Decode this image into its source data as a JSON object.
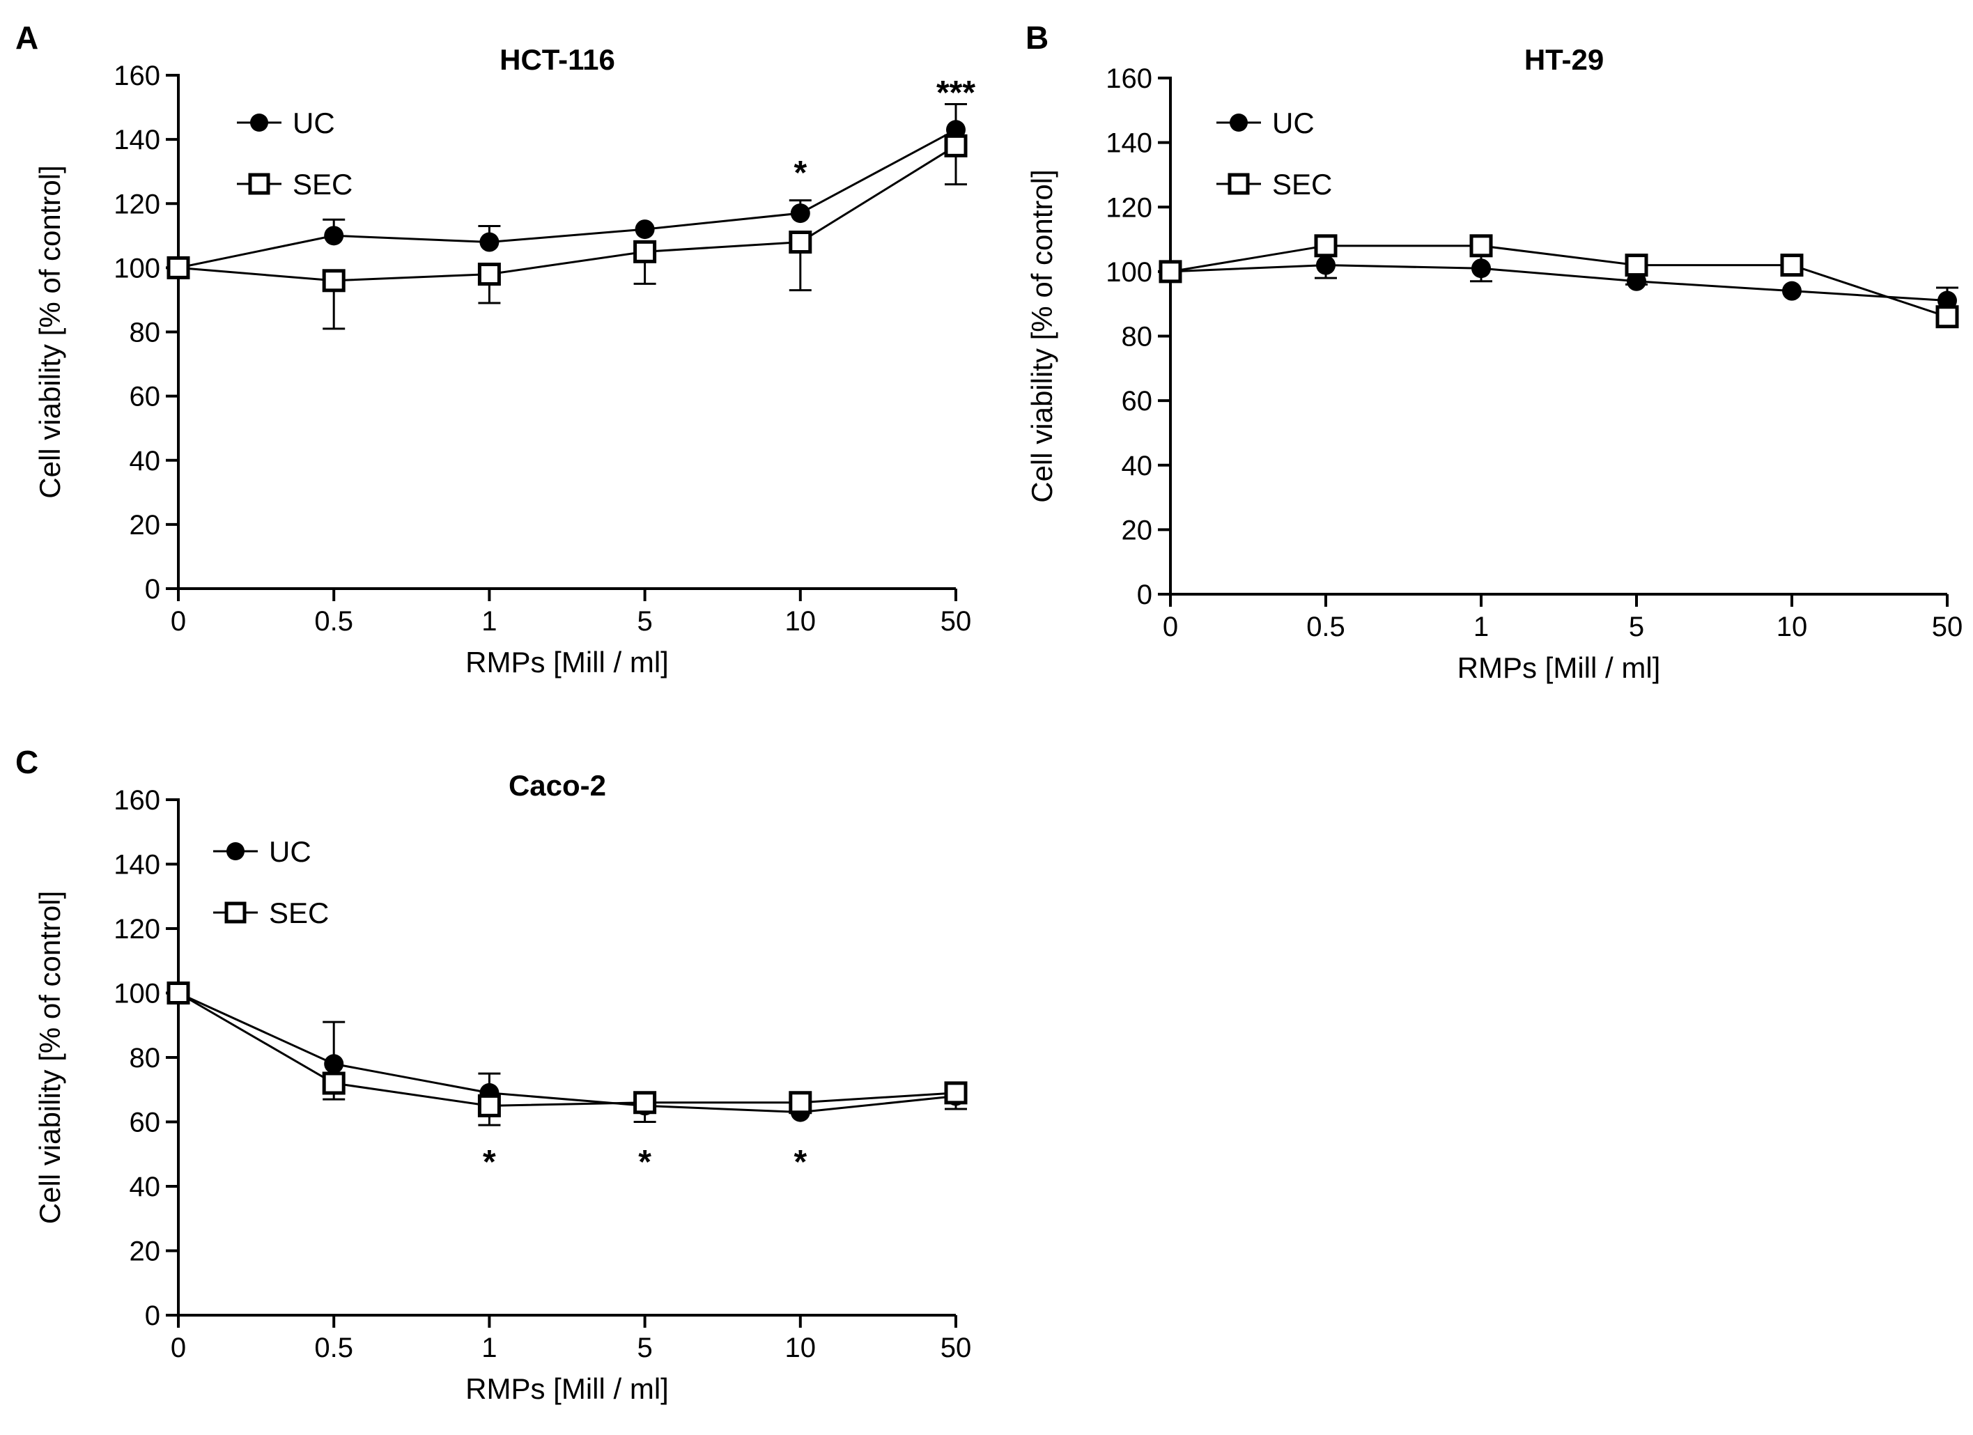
{
  "chart_data": [
    {
      "panel": "A",
      "type": "line",
      "title": "HCT-116",
      "xlabel": "RMPs [Mill /  ml]",
      "ylabel": "Cell viability [% of control]",
      "categories": [
        "0",
        "0.5",
        "1",
        "5",
        "10",
        "50"
      ],
      "ylim": [
        0,
        160
      ],
      "yticks": [
        0,
        20,
        40,
        60,
        80,
        100,
        120,
        140,
        160
      ],
      "legend_position": "top-left",
      "grid": false,
      "series": [
        {
          "name": "UC",
          "marker": "filled-circle",
          "values": [
            100,
            110,
            108,
            112,
            117,
            143
          ],
          "errors": [
            0,
            5,
            5,
            0,
            4,
            8
          ]
        },
        {
          "name": "SEC",
          "marker": "open-square",
          "values": [
            100,
            96,
            98,
            105,
            108,
            138
          ],
          "errors": [
            0,
            15,
            9,
            10,
            15,
            12
          ]
        }
      ],
      "annotations": [
        {
          "category": "10",
          "text": "*",
          "y": 130
        },
        {
          "category": "50",
          "text": "***",
          "y": 155
        }
      ]
    },
    {
      "panel": "B",
      "type": "line",
      "title": "HT-29",
      "xlabel": "RMPs [Mill /  ml]",
      "ylabel": "Cell viability [% of control]",
      "categories": [
        "0",
        "0.5",
        "1",
        "5",
        "10",
        "50"
      ],
      "ylim": [
        0,
        160
      ],
      "yticks": [
        0,
        20,
        40,
        60,
        80,
        100,
        120,
        140,
        160
      ],
      "legend_position": "top-left",
      "grid": false,
      "series": [
        {
          "name": "UC",
          "marker": "filled-circle",
          "values": [
            100,
            102,
            101,
            97,
            94,
            91
          ],
          "errors": [
            0,
            4,
            7,
            0,
            0,
            4
          ]
        },
        {
          "name": "SEC",
          "marker": "open-square",
          "values": [
            100,
            108,
            108,
            102,
            102,
            86
          ],
          "errors": [
            0,
            10,
            11,
            6,
            2,
            3
          ]
        }
      ],
      "annotations": []
    },
    {
      "panel": "C",
      "type": "line",
      "title": "Caco-2",
      "xlabel": "RMPs [Mill /  ml]",
      "ylabel": "Cell viability [% of control]",
      "categories": [
        "0",
        "0.5",
        "1",
        "5",
        "10",
        "50"
      ],
      "ylim": [
        0,
        160
      ],
      "yticks": [
        0,
        20,
        40,
        60,
        80,
        100,
        120,
        140,
        160
      ],
      "legend_position": "top-left",
      "grid": false,
      "series": [
        {
          "name": "UC",
          "marker": "filled-circle",
          "values": [
            100,
            78,
            69,
            65,
            63,
            68
          ],
          "errors": [
            0,
            13,
            6,
            0,
            0,
            4
          ]
        },
        {
          "name": "SEC",
          "marker": "open-square",
          "values": [
            100,
            72,
            65,
            66,
            66,
            69
          ],
          "errors": [
            0,
            5,
            6,
            6,
            2,
            5
          ]
        }
      ],
      "annotations": [
        {
          "category": "1",
          "text": "*",
          "y": 48
        },
        {
          "category": "5",
          "text": "*",
          "y": 48
        },
        {
          "category": "10",
          "text": "*",
          "y": 48
        }
      ]
    }
  ]
}
